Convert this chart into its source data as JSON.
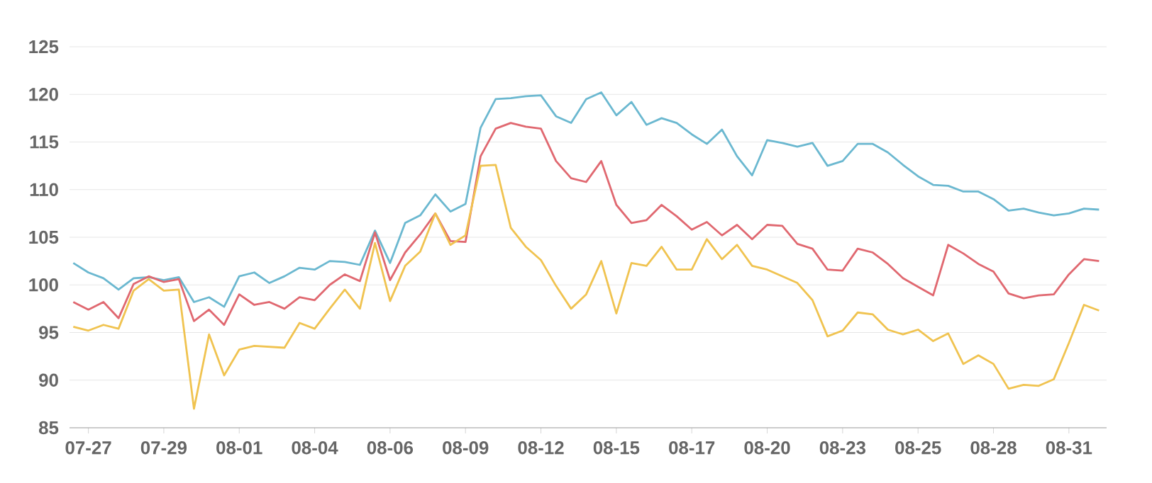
{
  "chart_data": {
    "type": "line",
    "ylim": [
      85,
      125
    ],
    "yticks": [
      85,
      90,
      95,
      100,
      105,
      110,
      115,
      120,
      125
    ],
    "categories": [
      null,
      "07-27",
      null,
      null,
      null,
      null,
      "07-29",
      null,
      null,
      null,
      null,
      "08-01",
      null,
      null,
      null,
      null,
      "08-04",
      null,
      null,
      null,
      null,
      "08-06",
      null,
      null,
      null,
      null,
      "08-09",
      null,
      null,
      null,
      null,
      "08-12",
      null,
      null,
      null,
      null,
      "08-15",
      null,
      null,
      null,
      null,
      "08-17",
      null,
      null,
      null,
      null,
      "08-20",
      null,
      null,
      null,
      null,
      "08-23",
      null,
      null,
      null,
      null,
      "08-25",
      null,
      null,
      null,
      null,
      "08-28",
      null,
      null,
      null,
      null,
      "08-31",
      null,
      null
    ],
    "grid": "y",
    "marker": "none",
    "line_style": "solid",
    "series": [
      {
        "color": "#6bb8d0",
        "values": [
          102.3,
          101.3,
          100.7,
          99.5,
          100.7,
          100.8,
          100.5,
          100.8,
          98.2,
          98.7,
          97.7,
          100.9,
          101.3,
          100.2,
          100.9,
          101.8,
          101.6,
          102.5,
          102.4,
          102.1,
          105.7,
          102.3,
          106.5,
          107.3,
          109.5,
          107.7,
          108.5,
          116.5,
          119.5,
          119.6,
          119.8,
          119.9,
          117.7,
          117,
          119.5,
          120.2,
          117.8,
          119.2,
          116.8,
          117.5,
          117,
          115.8,
          114.8,
          116.3,
          113.5,
          111.5,
          115.2,
          114.9,
          114.5,
          114.9,
          112.5,
          113,
          114.8,
          114.8,
          113.9,
          112.6,
          111.4,
          110.5,
          110.4,
          109.8,
          109.8,
          109,
          107.8,
          108,
          107.6,
          107.3,
          107.5,
          108,
          107.9
        ]
      },
      {
        "color": "#e06870",
        "values": [
          98.2,
          97.4,
          98.2,
          96.5,
          100.1,
          100.9,
          100.3,
          100.6,
          96.2,
          97.4,
          95.8,
          99,
          97.9,
          98.2,
          97.5,
          98.7,
          98.4,
          100,
          101.1,
          100.4,
          105.5,
          100.5,
          103.4,
          105.3,
          107.5,
          104.6,
          104.5,
          113.5,
          116.4,
          117,
          116.6,
          116.4,
          113,
          111.2,
          110.8,
          113,
          108.4,
          106.5,
          106.8,
          108.4,
          107.2,
          105.8,
          106.6,
          105.2,
          106.3,
          104.8,
          106.3,
          106.2,
          104.3,
          103.8,
          101.6,
          101.5,
          103.8,
          103.4,
          102.2,
          100.7,
          99.8,
          98.9,
          104.2,
          103.3,
          102.2,
          101.4,
          99.1,
          98.6,
          98.9,
          99,
          101.1,
          102.7,
          102.5
        ]
      },
      {
        "color": "#f0c350",
        "values": [
          95.6,
          95.2,
          95.8,
          95.4,
          99.4,
          100.6,
          99.4,
          99.5,
          87,
          94.8,
          90.5,
          93.2,
          93.6,
          93.5,
          93.4,
          96,
          95.4,
          97.5,
          99.5,
          97.5,
          104.4,
          98.3,
          102,
          103.5,
          107.5,
          104.2,
          105.2,
          112.5,
          112.6,
          106,
          104,
          102.6,
          99.9,
          97.5,
          99,
          102.5,
          97,
          102.3,
          102,
          104,
          101.6,
          101.6,
          104.8,
          102.7,
          104.2,
          102,
          101.6,
          100.9,
          100.2,
          98.4,
          94.6,
          95.2,
          97.1,
          96.9,
          95.3,
          94.8,
          95.3,
          94.1,
          94.9,
          91.7,
          92.6,
          91.7,
          89.1,
          89.5,
          89.4,
          90.1,
          93.9,
          97.9,
          97.3
        ]
      }
    ]
  }
}
